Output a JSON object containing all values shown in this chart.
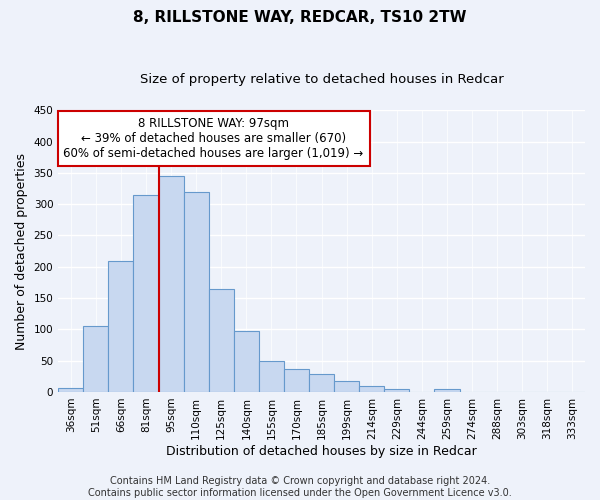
{
  "title": "8, RILLSTONE WAY, REDCAR, TS10 2TW",
  "subtitle": "Size of property relative to detached houses in Redcar",
  "xlabel": "Distribution of detached houses by size in Redcar",
  "ylabel": "Number of detached properties",
  "bar_labels": [
    "36sqm",
    "51sqm",
    "66sqm",
    "81sqm",
    "95sqm",
    "110sqm",
    "125sqm",
    "140sqm",
    "155sqm",
    "170sqm",
    "185sqm",
    "199sqm",
    "214sqm",
    "229sqm",
    "244sqm",
    "259sqm",
    "274sqm",
    "288sqm",
    "303sqm",
    "318sqm",
    "333sqm"
  ],
  "bar_values": [
    7,
    105,
    210,
    315,
    345,
    320,
    165,
    97,
    50,
    37,
    29,
    18,
    9,
    5,
    0,
    5,
    0,
    0,
    0,
    0,
    0
  ],
  "bar_color": "#c8d8f0",
  "bar_edge_color": "#6699cc",
  "property_line_x": 3.5,
  "property_line_color": "#cc0000",
  "ylim": [
    0,
    450
  ],
  "yticks": [
    0,
    50,
    100,
    150,
    200,
    250,
    300,
    350,
    400,
    450
  ],
  "annotation_line1": "8 RILLSTONE WAY: 97sqm",
  "annotation_line2": "← 39% of detached houses are smaller (670)",
  "annotation_line3": "60% of semi-detached houses are larger (1,019) →",
  "annotation_box_color": "#ffffff",
  "annotation_box_edge_color": "#cc0000",
  "footer_line1": "Contains HM Land Registry data © Crown copyright and database right 2024.",
  "footer_line2": "Contains public sector information licensed under the Open Government Licence v3.0.",
  "background_color": "#eef2fa",
  "plot_bg_color": "#eef2fa",
  "grid_color": "#ffffff",
  "title_fontsize": 11,
  "subtitle_fontsize": 9.5,
  "axis_label_fontsize": 9,
  "tick_fontsize": 7.5,
  "footer_fontsize": 7,
  "annotation_fontsize": 8.5
}
